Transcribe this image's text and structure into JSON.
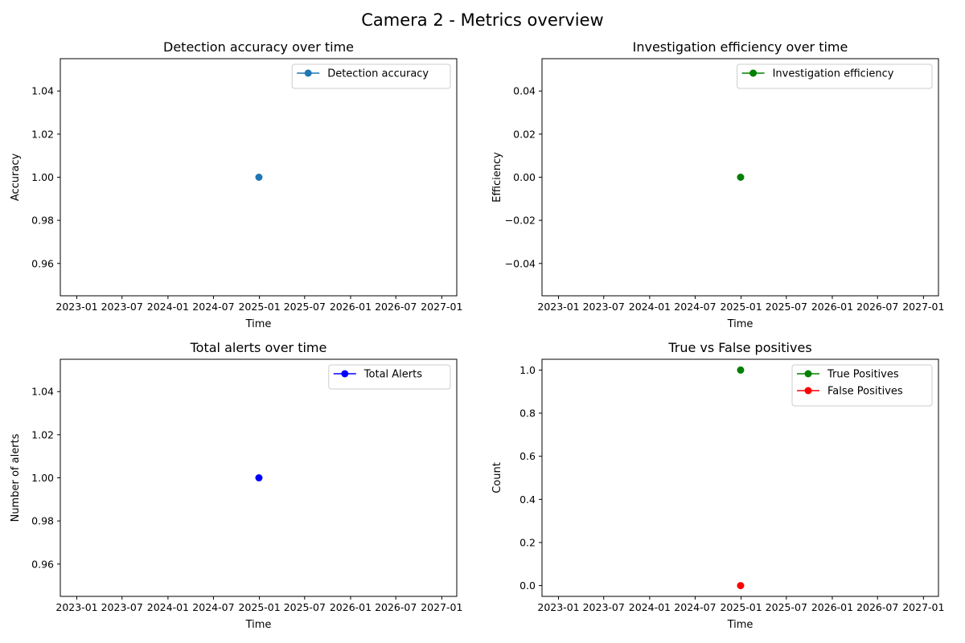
{
  "figure": {
    "suptitle": "Camera 2 - Metrics overview",
    "colors": {
      "accent_blue": "#1f77b4",
      "green": "#008000",
      "blue": "#0000ff",
      "red": "#ff0000"
    }
  },
  "chart_data": [
    {
      "type": "line",
      "title": "Detection accuracy over time",
      "xlabel": "Time",
      "ylabel": "Accuracy",
      "x_type": "date",
      "x_ticks": [
        "2023-01",
        "2023-07",
        "2024-01",
        "2024-07",
        "2025-01",
        "2025-07",
        "2026-01",
        "2026-07",
        "2027-01"
      ],
      "xlim": [
        "2022-10-27",
        "2027-03-02"
      ],
      "y_ticks": [
        "0.96",
        "0.98",
        "1.00",
        "1.02",
        "1.04"
      ],
      "ylim": [
        0.945,
        1.055
      ],
      "legend_position": "upper right",
      "series": [
        {
          "name": "Detection accuracy",
          "color": "#1f77b4",
          "points": [
            {
              "x": "2024-12-30",
              "y": 1.0
            }
          ]
        }
      ]
    },
    {
      "type": "line",
      "title": "Investigation efficiency over time",
      "xlabel": "Time",
      "ylabel": "Efficiency",
      "x_type": "date",
      "x_ticks": [
        "2023-01",
        "2023-07",
        "2024-01",
        "2024-07",
        "2025-01",
        "2025-07",
        "2026-01",
        "2026-07",
        "2027-01"
      ],
      "xlim": [
        "2022-10-27",
        "2027-03-02"
      ],
      "y_ticks": [
        "−0.04",
        "−0.02",
        "0.00",
        "0.02",
        "0.04"
      ],
      "ylim": [
        -0.055,
        0.055
      ],
      "legend_position": "upper right",
      "series": [
        {
          "name": "Investigation efficiency",
          "color": "#008000",
          "points": [
            {
              "x": "2024-12-30",
              "y": 0.0
            }
          ]
        }
      ]
    },
    {
      "type": "line",
      "title": "Total alerts over time",
      "xlabel": "Time",
      "ylabel": "Number of alerts",
      "x_type": "date",
      "x_ticks": [
        "2023-01",
        "2023-07",
        "2024-01",
        "2024-07",
        "2025-01",
        "2025-07",
        "2026-01",
        "2026-07",
        "2027-01"
      ],
      "xlim": [
        "2022-10-27",
        "2027-03-02"
      ],
      "y_ticks": [
        "0.96",
        "0.98",
        "1.00",
        "1.02",
        "1.04"
      ],
      "ylim": [
        0.945,
        1.055
      ],
      "legend_position": "upper right",
      "series": [
        {
          "name": "Total Alerts",
          "color": "#0000ff",
          "points": [
            {
              "x": "2024-12-30",
              "y": 1.0
            }
          ]
        }
      ]
    },
    {
      "type": "line",
      "title": "True vs False positives",
      "xlabel": "Time",
      "ylabel": "Count",
      "x_type": "date",
      "x_ticks": [
        "2023-01",
        "2023-07",
        "2024-01",
        "2024-07",
        "2025-01",
        "2025-07",
        "2026-01",
        "2026-07",
        "2027-01"
      ],
      "xlim": [
        "2022-10-27",
        "2027-03-02"
      ],
      "y_ticks": [
        "0.0",
        "0.2",
        "0.4",
        "0.6",
        "0.8",
        "1.0"
      ],
      "ylim": [
        -0.05,
        1.05
      ],
      "legend_position": "upper right",
      "series": [
        {
          "name": "True Positives",
          "color": "#008000",
          "points": [
            {
              "x": "2024-12-30",
              "y": 1.0
            }
          ]
        },
        {
          "name": "False Positives",
          "color": "#ff0000",
          "points": [
            {
              "x": "2024-12-30",
              "y": 0.0
            }
          ]
        }
      ]
    }
  ]
}
